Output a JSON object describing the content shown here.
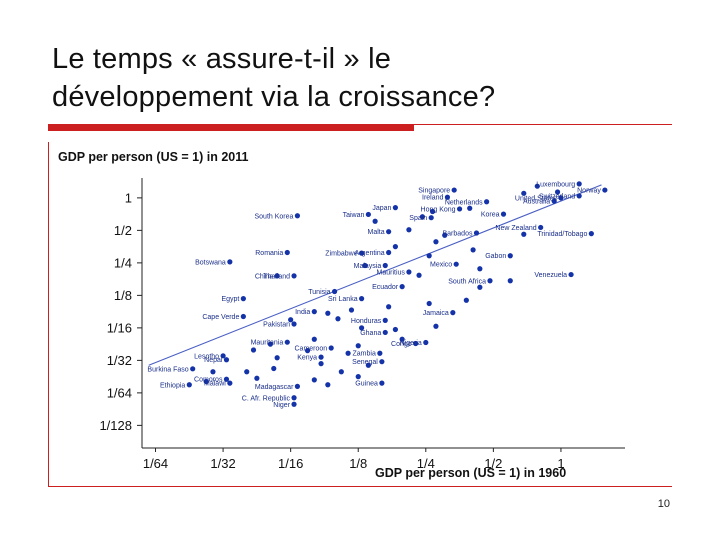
{
  "slide": {
    "title_line1": "Le temps « assure-t-il » le",
    "title_line2": "développement via la croissance?",
    "page_number": "10"
  },
  "colors": {
    "accent": "#cc1f1f",
    "points": "#1433a8",
    "fit_line": "#4a5fc4"
  },
  "chart_data": {
    "type": "scatter",
    "title": "GDP per person (US = 1) in 2011",
    "xlabel": "GDP per person (US = 1) in 1960",
    "ylabel": "",
    "scale": "log2",
    "x_ticks": [
      "1/64",
      "1/32",
      "1/16",
      "1/8",
      "1/4",
      "1/2",
      "1"
    ],
    "x_tick_values": [
      -6,
      -5,
      -4,
      -3,
      -2,
      -1,
      0
    ],
    "y_ticks": [
      "1",
      "1/2",
      "1/4",
      "1/8",
      "1/16",
      "1/32",
      "1/64",
      "1/128"
    ],
    "y_tick_values": [
      0,
      -1,
      -2,
      -3,
      -4,
      -5,
      -6,
      -7
    ],
    "xlim": [
      -6.2,
      0.8
    ],
    "ylim": [
      -7.45,
      0.55
    ],
    "fit_line": {
      "x": [
        -6.1,
        0.6
      ],
      "y": [
        -5.15,
        0.4
      ]
    },
    "labeled_points": [
      {
        "label": "Norway",
        "x": 0.65,
        "y": 0.24
      },
      {
        "label": "Luxembourg",
        "x": 0.27,
        "y": 0.43
      },
      {
        "label": "Switzerland",
        "x": 0.27,
        "y": 0.06
      },
      {
        "label": "United States",
        "x": 0.0,
        "y": 0.0
      },
      {
        "label": "Australia",
        "x": -0.1,
        "y": -0.1
      },
      {
        "label": "Singapore",
        "x": -1.58,
        "y": 0.24
      },
      {
        "label": "Ireland",
        "x": -1.68,
        "y": 0.02
      },
      {
        "label": "Netherlands",
        "x": -1.1,
        "y": -0.12
      },
      {
        "label": "Hong Kong",
        "x": -1.5,
        "y": -0.34
      },
      {
        "label": "Japan",
        "x": -2.45,
        "y": -0.3
      },
      {
        "label": "Taiwan",
        "x": -2.85,
        "y": -0.51
      },
      {
        "label": "Korea",
        "x": -0.85,
        "y": -0.5
      },
      {
        "label": "Spain",
        "x": -1.92,
        "y": -0.61
      },
      {
        "label": "South Korea",
        "x": -3.9,
        "y": -0.55
      },
      {
        "label": "New Zealand",
        "x": -0.3,
        "y": -0.91
      },
      {
        "label": "Trinidad/Tobago",
        "x": 0.45,
        "y": -1.1
      },
      {
        "label": "Barbados",
        "x": -1.25,
        "y": -1.08
      },
      {
        "label": "Malta",
        "x": -2.55,
        "y": -1.04
      },
      {
        "label": "Romania",
        "x": -4.05,
        "y": -1.68
      },
      {
        "label": "Zimbabwe",
        "x": -2.95,
        "y": -1.7
      },
      {
        "label": "Argentina",
        "x": -2.55,
        "y": -1.68
      },
      {
        "label": "Gabon",
        "x": -0.75,
        "y": -1.78
      },
      {
        "label": "Botswana",
        "x": -4.9,
        "y": -1.97
      },
      {
        "label": "Malaysia",
        "x": -2.6,
        "y": -2.08
      },
      {
        "label": "Mexico",
        "x": -1.55,
        "y": -2.04
      },
      {
        "label": "Mauritius",
        "x": -2.25,
        "y": -2.28
      },
      {
        "label": "China",
        "x": -4.2,
        "y": -2.4
      },
      {
        "label": "Thailand",
        "x": -3.95,
        "y": -2.4
      },
      {
        "label": "Venezuela",
        "x": 0.15,
        "y": -2.36
      },
      {
        "label": "South Africa",
        "x": -1.05,
        "y": -2.55
      },
      {
        "label": "Tunisia",
        "x": -3.35,
        "y": -2.88
      },
      {
        "label": "Ecuador",
        "x": -2.35,
        "y": -2.73
      },
      {
        "label": "Egypt",
        "x": -4.7,
        "y": -3.1
      },
      {
        "label": "Sri Lanka",
        "x": -2.95,
        "y": -3.1
      },
      {
        "label": "India",
        "x": -3.65,
        "y": -3.5
      },
      {
        "label": "Jamaica",
        "x": -1.6,
        "y": -3.53
      },
      {
        "label": "Cape Verde",
        "x": -4.7,
        "y": -3.65
      },
      {
        "label": "Honduras",
        "x": -2.6,
        "y": -3.77
      },
      {
        "label": "Pakistan",
        "x": -3.95,
        "y": -3.88
      },
      {
        "label": "Ghana",
        "x": -2.6,
        "y": -4.14
      },
      {
        "label": "Mauritania",
        "x": -4.05,
        "y": -4.44
      },
      {
        "label": "Congo",
        "x": -2.15,
        "y": -4.48
      },
      {
        "label": "Nigeria",
        "x": -2.0,
        "y": -4.45
      },
      {
        "label": "Cameroon",
        "x": -3.4,
        "y": -4.62
      },
      {
        "label": "Zambia",
        "x": -2.68,
        "y": -4.78
      },
      {
        "label": "Lesotho",
        "x": -5.0,
        "y": -4.86
      },
      {
        "label": "Nepal",
        "x": -4.95,
        "y": -4.98
      },
      {
        "label": "Kenya",
        "x": -3.55,
        "y": -4.9
      },
      {
        "label": "Senegal",
        "x": -2.65,
        "y": -5.04
      },
      {
        "label": "Burkina Faso",
        "x": -5.45,
        "y": -5.26
      },
      {
        "label": "Ethiopia",
        "x": -5.5,
        "y": -5.75
      },
      {
        "label": "Malawi",
        "x": -4.9,
        "y": -5.7
      },
      {
        "label": "Comoros",
        "x": -4.95,
        "y": -5.58
      },
      {
        "label": "Guinea",
        "x": -2.65,
        "y": -5.7
      },
      {
        "label": "Madagascar",
        "x": -3.9,
        "y": -5.8
      },
      {
        "label": "C. Afr. Republic",
        "x": -3.95,
        "y": -6.15
      },
      {
        "label": "Niger",
        "x": -3.95,
        "y": -6.35
      }
    ],
    "unlabeled_points": [
      {
        "x": -0.55,
        "y": 0.14
      },
      {
        "x": -0.05,
        "y": 0.18
      },
      {
        "x": -0.35,
        "y": 0.36
      },
      {
        "x": -1.35,
        "y": -0.32
      },
      {
        "x": -1.9,
        "y": -0.42
      },
      {
        "x": -2.05,
        "y": -0.58
      },
      {
        "x": -2.75,
        "y": -0.72
      },
      {
        "x": -2.25,
        "y": -0.98
      },
      {
        "x": -1.72,
        "y": -1.15
      },
      {
        "x": -0.55,
        "y": -1.12
      },
      {
        "x": -2.45,
        "y": -1.5
      },
      {
        "x": -1.85,
        "y": -1.35
      },
      {
        "x": -1.95,
        "y": -1.78
      },
      {
        "x": -1.3,
        "y": -1.6
      },
      {
        "x": -1.2,
        "y": -2.18
      },
      {
        "x": -2.9,
        "y": -2.08
      },
      {
        "x": -2.1,
        "y": -2.38
      },
      {
        "x": -0.75,
        "y": -2.55
      },
      {
        "x": -1.2,
        "y": -2.75
      },
      {
        "x": -1.4,
        "y": -3.15
      },
      {
        "x": -1.95,
        "y": -3.25
      },
      {
        "x": -2.55,
        "y": -3.35
      },
      {
        "x": -3.1,
        "y": -3.45
      },
      {
        "x": -3.45,
        "y": -3.55
      },
      {
        "x": -3.3,
        "y": -3.72
      },
      {
        "x": -4.0,
        "y": -3.75
      },
      {
        "x": -1.85,
        "y": -3.95
      },
      {
        "x": -2.45,
        "y": -4.05
      },
      {
        "x": -2.95,
        "y": -4.0
      },
      {
        "x": -2.35,
        "y": -4.35
      },
      {
        "x": -3.65,
        "y": -4.35
      },
      {
        "x": -3.0,
        "y": -4.55
      },
      {
        "x": -4.3,
        "y": -4.5
      },
      {
        "x": -3.75,
        "y": -4.7
      },
      {
        "x": -4.55,
        "y": -4.68
      },
      {
        "x": -3.15,
        "y": -4.78
      },
      {
        "x": -4.2,
        "y": -4.92
      },
      {
        "x": -3.55,
        "y": -5.1
      },
      {
        "x": -5.15,
        "y": -5.35
      },
      {
        "x": -4.65,
        "y": -5.35
      },
      {
        "x": -4.25,
        "y": -5.25
      },
      {
        "x": -3.25,
        "y": -5.35
      },
      {
        "x": -4.5,
        "y": -5.55
      },
      {
        "x": -3.65,
        "y": -5.6
      },
      {
        "x": -3.0,
        "y": -5.5
      },
      {
        "x": -3.45,
        "y": -5.75
      },
      {
        "x": -5.25,
        "y": -5.65
      },
      {
        "x": -2.85,
        "y": -5.15
      }
    ]
  }
}
